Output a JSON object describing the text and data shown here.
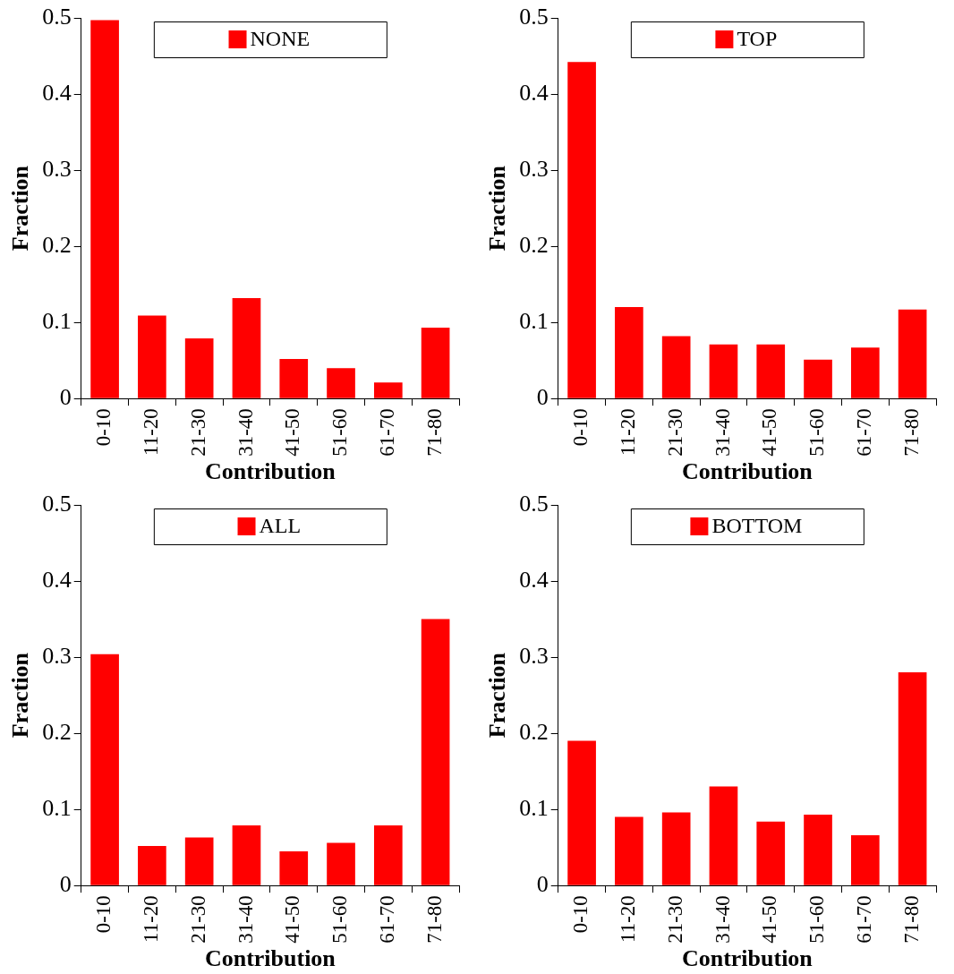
{
  "chart_data": [
    {
      "type": "bar",
      "categories": [
        "0-10",
        "11-20",
        "21-30",
        "31-40",
        "41-50",
        "51-60",
        "61-70",
        "71-80"
      ],
      "xlabel": "Contribution",
      "ylabel": "Fraction",
      "ylim": [
        0,
        0.5
      ],
      "yticks": [
        0,
        0.1,
        0.2,
        0.3,
        0.4,
        0.5
      ],
      "grid": false,
      "legend": "top",
      "series": [
        {
          "name": "NONE",
          "color": "#ff0000",
          "values": [
            0.497,
            0.109,
            0.079,
            0.132,
            0.052,
            0.04,
            0.021,
            0.093
          ]
        }
      ]
    },
    {
      "type": "bar",
      "categories": [
        "0-10",
        "11-20",
        "21-30",
        "31-40",
        "41-50",
        "51-60",
        "61-70",
        "71-80"
      ],
      "xlabel": "Contribution",
      "ylabel": "Fraction",
      "ylim": [
        0,
        0.5
      ],
      "yticks": [
        0,
        0.1,
        0.2,
        0.3,
        0.4,
        0.5
      ],
      "grid": false,
      "legend": "top",
      "series": [
        {
          "name": "TOP",
          "color": "#ff0000",
          "values": [
            0.442,
            0.12,
            0.082,
            0.071,
            0.071,
            0.051,
            0.067,
            0.117
          ]
        }
      ]
    },
    {
      "type": "bar",
      "categories": [
        "0-10",
        "11-20",
        "21-30",
        "31-40",
        "41-50",
        "51-60",
        "61-70",
        "71-80"
      ],
      "xlabel": "Contribution",
      "ylabel": "Fraction",
      "ylim": [
        0,
        0.5
      ],
      "yticks": [
        0,
        0.1,
        0.2,
        0.3,
        0.4,
        0.5
      ],
      "grid": false,
      "legend": "top",
      "series": [
        {
          "name": "ALL",
          "color": "#ff0000",
          "values": [
            0.304,
            0.052,
            0.063,
            0.079,
            0.045,
            0.056,
            0.079,
            0.35
          ]
        }
      ]
    },
    {
      "type": "bar",
      "categories": [
        "0-10",
        "11-20",
        "21-30",
        "31-40",
        "41-50",
        "51-60",
        "61-70",
        "71-80"
      ],
      "xlabel": "Contribution",
      "ylabel": "Fraction",
      "ylim": [
        0,
        0.5
      ],
      "yticks": [
        0,
        0.1,
        0.2,
        0.3,
        0.4,
        0.5
      ],
      "grid": false,
      "legend": "top",
      "series": [
        {
          "name": "BOTTOM",
          "color": "#ff0000",
          "values": [
            0.19,
            0.09,
            0.096,
            0.13,
            0.084,
            0.093,
            0.066,
            0.28
          ]
        }
      ]
    }
  ]
}
